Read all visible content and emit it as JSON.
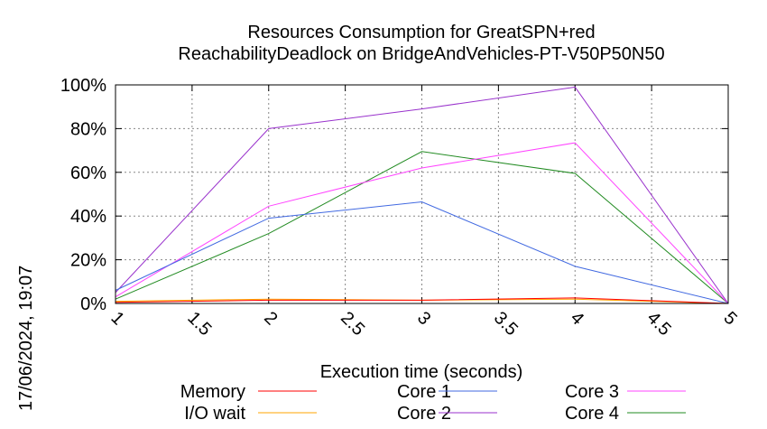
{
  "chart_data": {
    "type": "line",
    "title_line1": "Resources Consumption for GreatSPN+red",
    "title_line2": "ReachabilityDeadlock on BridgeAndVehicles-PT-V50P50N50",
    "xlabel": "Execution time (seconds)",
    "timestamp": "17/06/2024, 19:07",
    "xlim": [
      1,
      5
    ],
    "ylim": [
      0,
      100
    ],
    "x_ticks": [
      "1",
      "1.5",
      "2",
      "2.5",
      "3",
      "3.5",
      "4",
      "4.5",
      "5"
    ],
    "y_ticks": [
      "0%",
      "20%",
      "40%",
      "60%",
      "80%",
      "100%"
    ],
    "grid": true,
    "x": [
      1,
      2,
      3,
      4,
      5
    ],
    "series": [
      {
        "name": "Memory",
        "color": "#ff0000",
        "values": [
          0.5,
          1.5,
          1.5,
          2.5,
          0
        ]
      },
      {
        "name": "I/O wait",
        "color": "#ffa500",
        "values": [
          1,
          2,
          1.5,
          2,
          0
        ]
      },
      {
        "name": "Core 1",
        "color": "#4169e1",
        "values": [
          6,
          39,
          46.5,
          17,
          0
        ]
      },
      {
        "name": "Core 2",
        "color": "#9932cc",
        "values": [
          5,
          80,
          89,
          99,
          0
        ]
      },
      {
        "name": "Core 3",
        "color": "#ff44ff",
        "values": [
          3,
          44.5,
          62,
          73.5,
          0
        ]
      },
      {
        "name": "Core 4",
        "color": "#228b22",
        "values": [
          2,
          32,
          69.5,
          59.5,
          0
        ]
      }
    ]
  }
}
